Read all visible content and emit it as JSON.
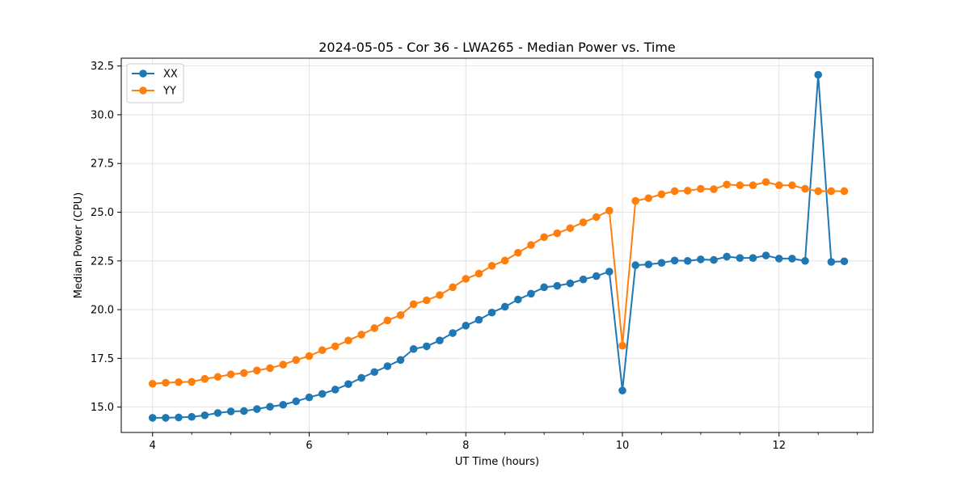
{
  "chart_data": {
    "type": "line",
    "title": "2024-05-05 - Cor 36 - LWA265 - Median Power vs. Time",
    "xlabel": "UT Time (hours)",
    "ylabel": "Median Power (CPU)",
    "xlim": [
      3.6,
      13.2
    ],
    "ylim": [
      13.7,
      32.9
    ],
    "xticks": [
      4,
      6,
      8,
      10,
      12
    ],
    "xtick_labels": [
      "4",
      "6",
      "8",
      "10",
      "12"
    ],
    "xminor_step": 0.5,
    "yticks": [
      15.0,
      17.5,
      20.0,
      22.5,
      25.0,
      27.5,
      30.0,
      32.5
    ],
    "ytick_labels": [
      "15.0",
      "17.5",
      "20.0",
      "22.5",
      "25.0",
      "27.5",
      "30.0",
      "32.5"
    ],
    "grid": true,
    "legend_position": "upper-left",
    "x": [
      4.0,
      4.167,
      4.333,
      4.5,
      4.667,
      4.833,
      5.0,
      5.167,
      5.333,
      5.5,
      5.667,
      5.833,
      6.0,
      6.167,
      6.333,
      6.5,
      6.667,
      6.833,
      7.0,
      7.167,
      7.333,
      7.5,
      7.667,
      7.833,
      8.0,
      8.167,
      8.333,
      8.5,
      8.667,
      8.833,
      9.0,
      9.167,
      9.333,
      9.5,
      9.667,
      9.833,
      10.0,
      10.167,
      10.333,
      10.5,
      10.667,
      10.833,
      11.0,
      11.167,
      11.333,
      11.5,
      11.667,
      11.833,
      12.0,
      12.167,
      12.333,
      12.5,
      12.667,
      12.833
    ],
    "series": [
      {
        "name": "XX",
        "color": "#1f77b4",
        "values": [
          14.45,
          14.45,
          14.47,
          14.5,
          14.58,
          14.7,
          14.78,
          14.8,
          14.9,
          15.02,
          15.12,
          15.3,
          15.5,
          15.68,
          15.9,
          16.18,
          16.5,
          16.8,
          17.1,
          17.42,
          17.98,
          18.12,
          18.42,
          18.8,
          19.18,
          19.48,
          19.85,
          20.15,
          20.52,
          20.82,
          21.15,
          21.22,
          21.35,
          21.55,
          21.72,
          21.95,
          15.85,
          22.28,
          22.32,
          22.4,
          22.52,
          22.5,
          22.58,
          22.55,
          22.72,
          22.65,
          22.65,
          22.78,
          22.62,
          22.62,
          22.5,
          32.05,
          22.45,
          22.48
        ]
      },
      {
        "name": "YY",
        "color": "#ff7f0e",
        "values": [
          16.2,
          16.25,
          16.28,
          16.3,
          16.45,
          16.55,
          16.68,
          16.75,
          16.88,
          17.0,
          17.18,
          17.42,
          17.62,
          17.92,
          18.12,
          18.42,
          18.72,
          19.05,
          19.45,
          19.72,
          20.28,
          20.48,
          20.75,
          21.15,
          21.58,
          21.85,
          22.25,
          22.52,
          22.92,
          23.32,
          23.72,
          23.92,
          24.18,
          24.48,
          24.75,
          25.08,
          18.15,
          25.58,
          25.72,
          25.92,
          26.08,
          26.1,
          26.2,
          26.18,
          26.42,
          26.38,
          26.38,
          26.55,
          26.38,
          26.38,
          26.2,
          26.08,
          26.08,
          26.08
        ]
      }
    ]
  }
}
